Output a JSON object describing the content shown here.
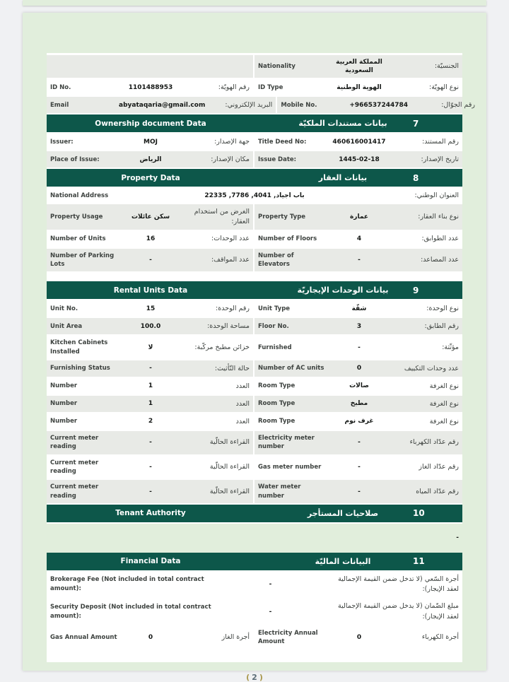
{
  "footer": {
    "open": "(",
    "page_number": "2",
    "close": ")"
  },
  "tenant_gap": {
    "note": "-"
  },
  "table1": [
    {
      "type": "row",
      "bg": "gray",
      "right": {
        "en": "Nationality",
        "val": "المملكة العربية السعودية",
        "ar": "الجنسيّة:"
      }
    },
    {
      "type": "row",
      "bg": "white",
      "left": {
        "en": "ID No.",
        "val": "1101488953",
        "ar": "رقم الهويّة:"
      },
      "right": {
        "en": "ID Type",
        "val": "الهوية الوطنية",
        "ar": "نوع الهويّة:"
      }
    },
    {
      "type": "row",
      "bg": "gray",
      "left": {
        "en": "Email",
        "val": "abyataqaria@gmail.com",
        "ar": "البريد الإلكتروني:"
      },
      "right": {
        "en": "Mobile No.",
        "val": "+966537244784",
        "ar": "رقم الجوّال:"
      }
    },
    {
      "type": "header",
      "en": "Ownership document Data",
      "ar": "بيانات مستندات الملكيّة",
      "num": "7"
    },
    {
      "type": "row",
      "bg": "white",
      "left": {
        "en": "Issuer:",
        "val": "MOJ",
        "ar": "جهة الإصدار:"
      },
      "right": {
        "en": "Title Deed No:",
        "val": "460616001417",
        "ar": "رقم المستند:"
      }
    },
    {
      "type": "row",
      "bg": "gray",
      "left": {
        "en": "Place of Issue:",
        "val": "الرياض",
        "ar": "مكان الإصدار:"
      },
      "right": {
        "en": "Issue Date:",
        "val": "1445-02-18",
        "ar": "تاريخ الإصدار:"
      }
    },
    {
      "type": "header",
      "en": "Property Data",
      "ar": "بيانات العقار",
      "num": "8"
    },
    {
      "type": "full",
      "bg": "white",
      "en": "National Address",
      "val": "باب اجياد, 4041, 7786, 22335",
      "ar": "العنوان الوطني:"
    },
    {
      "type": "row",
      "bg": "gray",
      "left": {
        "en": "Property Usage",
        "val": "سكن عائلات",
        "ar": "الغرض من استخدام العقار:"
      },
      "right": {
        "en": "Property Type",
        "val": "عمارة",
        "ar": "نوع بناء العقار:"
      }
    },
    {
      "type": "row",
      "bg": "white",
      "left": {
        "en": "Number of Units",
        "val": "16",
        "ar": "عدد الوحدات:"
      },
      "right": {
        "en": "Number of Floors",
        "val": "4",
        "ar": "عدد الطوابق:"
      }
    },
    {
      "type": "row",
      "bg": "gray",
      "left": {
        "en": "Number of Parking Lots",
        "val": "-",
        "ar": "عدد المواقف:"
      },
      "right": {
        "en": "Number of Elevators",
        "val": "-",
        "ar": "عدد المصاعد:"
      }
    },
    {
      "type": "gap"
    },
    {
      "type": "header",
      "en": "Rental Units Data",
      "ar": "بيانات الوحدات الإيجاريّة",
      "num": "9"
    },
    {
      "type": "row",
      "bg": "white",
      "left": {
        "en": "Unit No.",
        "val": "15",
        "ar": "رقم الوحدة:"
      },
      "right": {
        "en": "Unit Type",
        "val": "شقّة",
        "ar": "نوع الوحدة:"
      }
    },
    {
      "type": "row",
      "bg": "gray",
      "left": {
        "en": "Unit Area",
        "val": "100.0",
        "ar": "مساحة الوحدة:"
      },
      "right": {
        "en": "Floor No.",
        "val": "3",
        "ar": "رقم الطابق:"
      }
    },
    {
      "type": "row",
      "bg": "white",
      "left": {
        "en": "Kitchen Cabinets Installed",
        "val": "لا",
        "ar": "خزائن مطبخ مركّبة:"
      },
      "right": {
        "en": "Furnished",
        "val": "-",
        "ar": "مؤثّثة:"
      }
    },
    {
      "type": "row",
      "bg": "gray",
      "left": {
        "en": "Furnishing Status",
        "val": "-",
        "ar": "حالة التّأثيث:"
      },
      "right": {
        "en": "Number of AC units",
        "val": "0",
        "ar": "عدد وحدات التكييف"
      }
    },
    {
      "type": "row",
      "bg": "white",
      "left": {
        "en": "Number",
        "val": "1",
        "ar": "العدد"
      },
      "right": {
        "en": "Room Type",
        "val": "صالات",
        "ar": "نوع الغرفة"
      }
    },
    {
      "type": "row",
      "bg": "gray",
      "left": {
        "en": "Number",
        "val": "1",
        "ar": "العدد"
      },
      "right": {
        "en": "Room Type",
        "val": "مطبخ",
        "ar": "نوع الغرفة"
      }
    },
    {
      "type": "row",
      "bg": "white",
      "left": {
        "en": "Number",
        "val": "2",
        "ar": "العدد"
      },
      "right": {
        "en": "Room Type",
        "val": "غرف نوم",
        "ar": "نوع الغرفة"
      }
    },
    {
      "type": "row",
      "bg": "gray",
      "left": {
        "en": "Current meter reading",
        "val": "-",
        "ar": "القراءة الحالّية"
      },
      "right": {
        "en": "Electricity meter number",
        "val": "-",
        "ar": "رقم عدّاد الكهرباء"
      }
    },
    {
      "type": "row",
      "bg": "white",
      "left": {
        "en": "Current meter reading",
        "val": "-",
        "ar": "القراءة الحالّية"
      },
      "right": {
        "en": "Gas meter number",
        "val": "-",
        "ar": "رقم عدّاد الغاز"
      }
    },
    {
      "type": "row",
      "bg": "gray",
      "left": {
        "en": "Current meter reading",
        "val": "-",
        "ar": "القراءة الحالّية"
      },
      "right": {
        "en": "Water meter number",
        "val": "-",
        "ar": "رقم عدّاد المياه"
      }
    },
    {
      "type": "header",
      "en": "Tenant Authority",
      "ar": "صلاحيات المستأجر",
      "num": "10"
    }
  ],
  "table2": [
    {
      "type": "header",
      "en": "Financial Data",
      "ar": "البيانات الماليّة",
      "num": "11"
    },
    {
      "type": "wide",
      "bg": "white",
      "en": "Brokerage Fee (Not included in total contract amount):",
      "val": "-",
      "ar": "أجرة السّعي (لا تدخل ضمن القيمة الإجمالية لعقد الإيجار):"
    },
    {
      "type": "wide",
      "bg": "gray",
      "en": "Security Deposit (Not included in total contract amount):",
      "val": "-",
      "ar": "مبلغ الضّمان (لا يدخل ضمن القيمة الإجمالية لعقد الإيجار):"
    },
    {
      "type": "row",
      "bg": "white",
      "left": {
        "en": "Gas Annual Amount",
        "val": "0",
        "ar": "أجرة الغاز"
      },
      "right": {
        "en": "Electricity Annual Amount",
        "val": "0",
        "ar": "أجرة الكهرباء"
      }
    }
  ]
}
